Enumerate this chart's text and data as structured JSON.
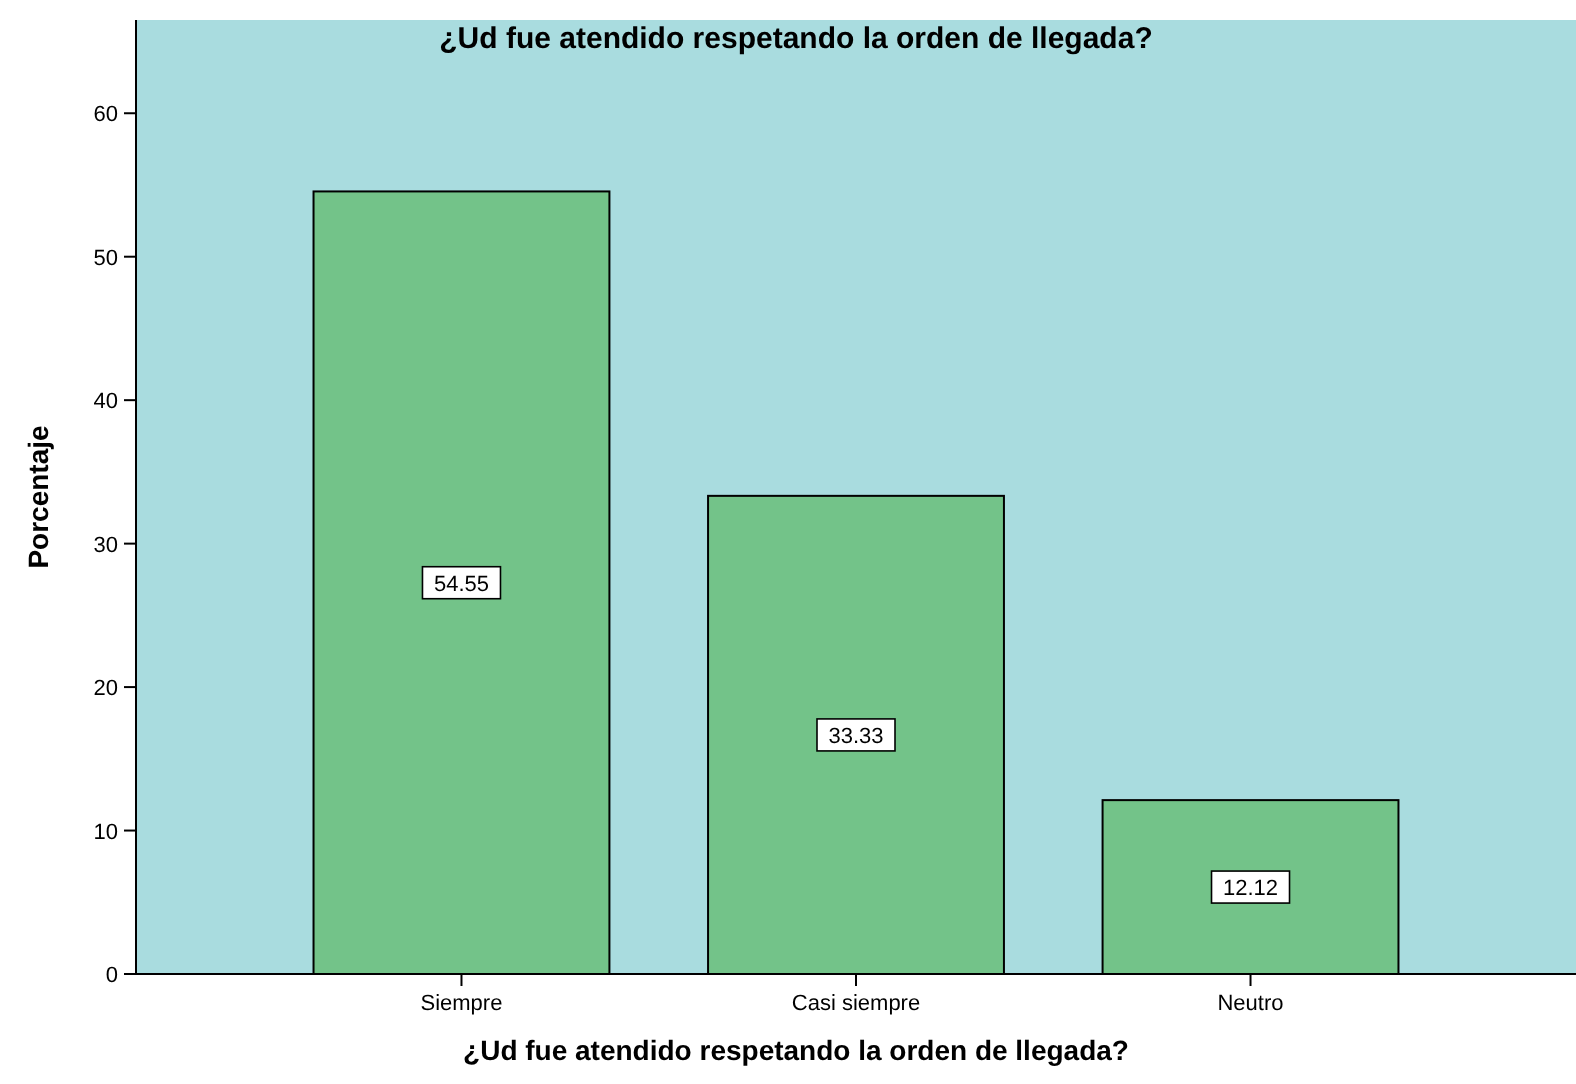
{
  "chart_data": {
    "type": "bar",
    "title": "¿Ud fue atendido respetando la orden de llegada?",
    "xlabel": "¿Ud fue atendido respetando la orden de llegada?",
    "ylabel": "Porcentaje",
    "categories": [
      "Siempre",
      "Casi siempre",
      "Neutro"
    ],
    "values": [
      54.55,
      33.33,
      12.12
    ],
    "color": "#73c389",
    "ylim": [
      0,
      66.5
    ],
    "yticks": [
      0,
      10,
      20,
      30,
      40,
      50,
      60
    ],
    "grid": false,
    "data_labels": true
  }
}
